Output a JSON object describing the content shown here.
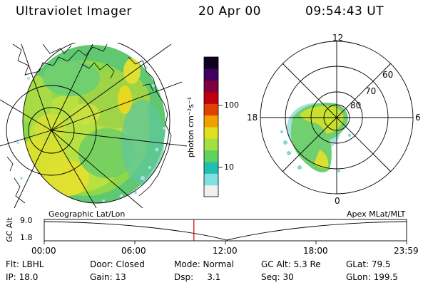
{
  "header": {
    "instrument": "Ultraviolet Imager",
    "date": "20 Apr 00",
    "time": "09:54:43 UT"
  },
  "geo_map": {
    "caption": "Geographic Lat/Lon"
  },
  "polar_plot": {
    "caption": "Apex MLat/MLT",
    "mlt_labels": {
      "top": "12",
      "bottom": "0",
      "left": "18",
      "right": "6"
    },
    "lat_labels": [
      "60",
      "70",
      "80"
    ]
  },
  "colorbar": {
    "unit_label": "photon cm⁻²s⁻¹",
    "ticks": [
      {
        "label": "100",
        "value": 100
      },
      {
        "label": "10",
        "value": 10
      }
    ],
    "colors": [
      "#f0f0f0",
      "#7fe0e0",
      "#20c0b0",
      "#60d060",
      "#a0e040",
      "#e0e020",
      "#f0a000",
      "#e04000",
      "#c00010",
      "#800040",
      "#400060",
      "#100020"
    ]
  },
  "timeline": {
    "axis_label": "GC Alt",
    "y_ticks": [
      "9.0",
      "1.8"
    ],
    "x_ticks": [
      "00:00",
      "06:00",
      "12:00",
      "18:00",
      "23:59"
    ],
    "current_time_hours": 9.91,
    "marker_color": "#cc0000"
  },
  "info": {
    "row1": [
      "Flt: LBHL",
      "Door: Closed",
      "Mode: Normal",
      "GC Alt: 5.3 Re",
      "GLat: 79.5"
    ],
    "row2": [
      "IP: 18.0",
      "Gain: 13",
      "Dsp:     3.1",
      "Seq: 30",
      "GLon: 199.5"
    ]
  }
}
